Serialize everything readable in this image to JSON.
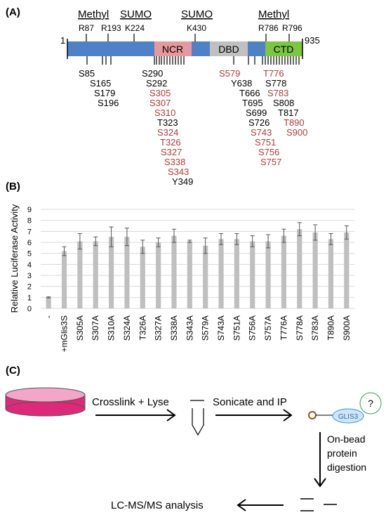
{
  "panelA": {
    "label": "(A)",
    "start": "1",
    "end": "935",
    "mods": {
      "methyl_left": "Methyl",
      "sumo_left": "SUMO",
      "sumo_mid": "SUMO",
      "methyl_right": "Methyl"
    },
    "top_sites": [
      "R87",
      "R193",
      "K224",
      "K430",
      "R786",
      "R796"
    ],
    "domains": {
      "ncr": "NCR",
      "dbd": "DBD",
      "ctd": "CTD"
    },
    "colors": {
      "bar": "#4f81c7",
      "ncr": "#e6999c",
      "dbd": "#c0c0c0",
      "ctd": "#7cc642",
      "red": "#b03a3a",
      "black": "#000000"
    },
    "sites_left": [
      "S85",
      "S165",
      "S179",
      "S196"
    ],
    "sites_ncr_black": [
      "S290",
      "S292"
    ],
    "sites_ncr_red": [
      "S305",
      "S307",
      "S310"
    ],
    "site_t323": "T323",
    "sites_ncr_red2": [
      "S324",
      "T326",
      "S327",
      "S338",
      "S343"
    ],
    "site_y349": "Y349",
    "site_s579": "S579",
    "site_t776": "T776",
    "sites_dbd_black": [
      "Y638",
      "T666",
      "T695",
      "S699",
      "S726"
    ],
    "sites_ctd_black": [
      "S778"
    ],
    "site_s783": "S783",
    "sites_ctd_black2": [
      "S808",
      "T817"
    ],
    "sites_ctd_red": [
      "T890",
      "S900"
    ],
    "sites_dbd_red": [
      "S743",
      "S751",
      "S756",
      "S757"
    ]
  },
  "panelB": {
    "label": "(B)",
    "chart_data": {
      "type": "bar",
      "categories": [
        "-",
        "+mGlis3S",
        "S305A",
        "S307A",
        "S310A",
        "S324A",
        "T326A",
        "S327A",
        "S338A",
        "S343A",
        "S579A",
        "S743A",
        "S751A",
        "S756A",
        "S757A",
        "T776A",
        "S778A",
        "S783A",
        "T890A",
        "S900A"
      ],
      "values": [
        1.0,
        5.2,
        6.1,
        6.1,
        6.5,
        6.5,
        5.6,
        6.0,
        6.6,
        6.1,
        5.7,
        6.3,
        6.3,
        6.1,
        6.1,
        6.6,
        7.2,
        6.9,
        6.3,
        6.9
      ],
      "errors": [
        0.05,
        0.4,
        0.7,
        0.4,
        0.9,
        0.8,
        0.6,
        0.4,
        0.6,
        0.1,
        0.7,
        0.5,
        0.5,
        0.5,
        0.6,
        0.6,
        0.6,
        0.7,
        0.5,
        0.6
      ],
      "ylabel": "Relative Luciferase Activity",
      "ylim": [
        0,
        9
      ],
      "yticks": [
        "0",
        "1",
        "2",
        "3",
        "4",
        "5",
        "6",
        "7",
        "8",
        "9"
      ],
      "grid": true,
      "bar_color": "#bfbfbf"
    }
  },
  "panelC": {
    "label": "(C)",
    "step1": "Crosslink + Lyse",
    "step2": "Sonicate and IP",
    "step3_lines": [
      "On-bead",
      "protein",
      "digestion"
    ],
    "step4": "LC-MS/MS analysis",
    "glis3": "GLIS3",
    "unknown": "?",
    "colors": {
      "dish": "#e0287a",
      "protein": "#3a8fd6",
      "partner": "#3a9a5a",
      "bead": "#8b5a1a"
    }
  }
}
